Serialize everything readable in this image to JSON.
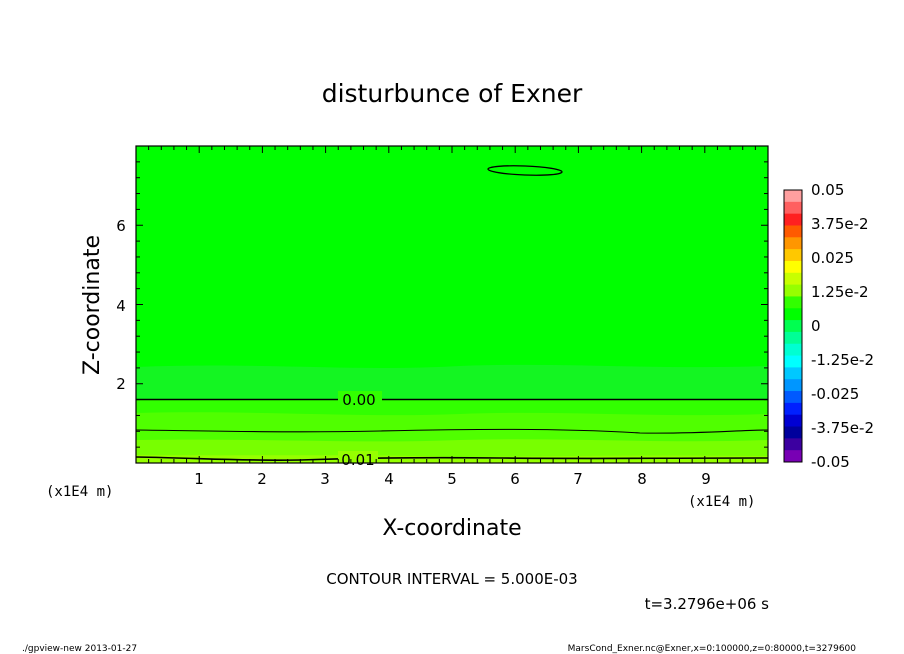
{
  "chart_data": {
    "type": "heatmap",
    "title": "disturbunce of Exner",
    "xlabel": "X-coordinate",
    "ylabel": "Z-coordinate",
    "x_unit_label": "(x1E4 m)",
    "y_unit_label": "(x1E4 m)",
    "xlim": [
      0,
      10
    ],
    "ylim": [
      0,
      8
    ],
    "x_ticks": [
      "1",
      "2",
      "3",
      "4",
      "5",
      "6",
      "7",
      "8",
      "9"
    ],
    "y_ticks": [
      "2",
      "4",
      "6"
    ],
    "contour_labels": [
      {
        "text": "0.00",
        "x": 3.8,
        "y": 1.55
      },
      {
        "text": "0.01",
        "x": 3.45,
        "y": 0.08
      }
    ],
    "contour_interval_text": "CONTOUR INTERVAL = 5.000E-03",
    "time_text": "t=3.2796e+06 s",
    "colorbar": {
      "labels": [
        "0.05",
        "3.75e-2",
        "0.025",
        "1.25e-2",
        "0",
        "-1.25e-2",
        "-0.025",
        "-3.75e-2",
        "-0.05"
      ],
      "colors": [
        "#ff9f9f",
        "#ff6060",
        "#ff2020",
        "#ff5a00",
        "#ff9600",
        "#ffc800",
        "#ffff00",
        "#c8ff00",
        "#96ff00",
        "#32ff00",
        "#00ff00",
        "#00ff50",
        "#00ff96",
        "#00ffd2",
        "#00ffff",
        "#00c8ff",
        "#0096ff",
        "#005aff",
        "#0020ff",
        "#0000d2",
        "#00009c",
        "#3c00a0",
        "#7800b4"
      ]
    },
    "footer_left": "./gpview-new  2013-01-27",
    "footer_right": "MarsCond_Exner.nc@Exner,x=0:100000,z=0:80000,t=3279600"
  }
}
